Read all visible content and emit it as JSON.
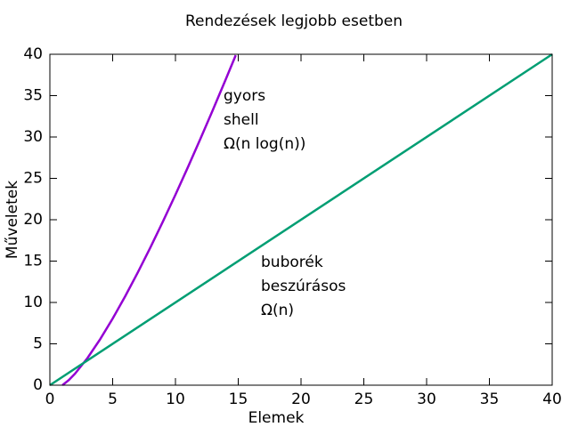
{
  "chart_data": {
    "type": "line",
    "title": "Rendezések legjobb esetben",
    "xlabel": "Elemek",
    "ylabel": "Műveletek",
    "xlim": [
      0,
      40
    ],
    "ylim": [
      0,
      40
    ],
    "xticks": [
      0,
      5,
      10,
      15,
      20,
      25,
      30,
      35,
      40
    ],
    "yticks": [
      0,
      5,
      10,
      15,
      20,
      25,
      30,
      35,
      40
    ],
    "series": [
      {
        "color": "#9400d3",
        "x": [
          1,
          1.5,
          2,
          3,
          4,
          5,
          6,
          7,
          8,
          9,
          10,
          11,
          12,
          13,
          14,
          14.8
        ],
        "values": [
          0,
          0.608,
          1.386,
          3.296,
          5.545,
          8.047,
          10.751,
          13.621,
          16.636,
          19.775,
          23.026,
          26.377,
          29.819,
          33.344,
          36.947,
          39.88
        ]
      },
      {
        "color": "#009e73",
        "x": [
          0,
          40
        ],
        "values": [
          0,
          40
        ]
      }
    ],
    "annotations": [
      [
        "gyors",
        "shell",
        "Ω(n log(n))"
      ],
      [
        "buborék",
        "beszúrásos",
        "Ω(n)"
      ]
    ]
  }
}
